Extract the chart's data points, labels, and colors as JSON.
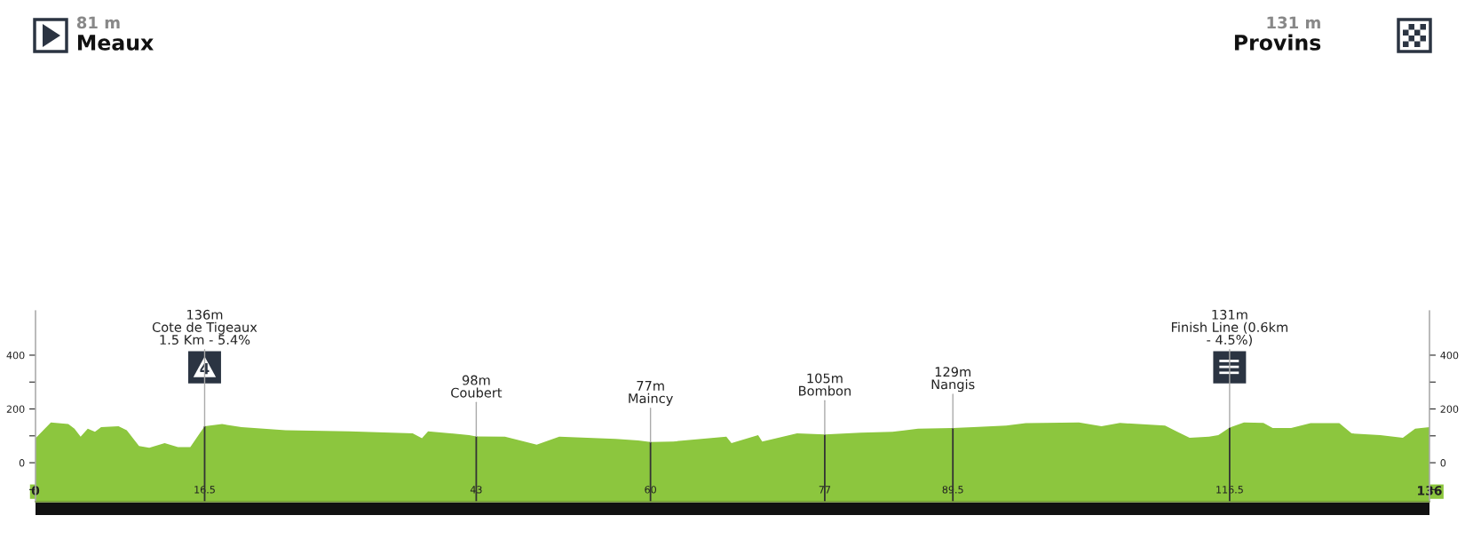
{
  "chart_data": {
    "type": "area",
    "x": [
      0,
      1.5,
      3.2,
      3.8,
      4.4,
      5.1,
      5.8,
      6.4,
      8.1,
      8.9,
      10.1,
      11.1,
      12.6,
      13.9,
      15.1,
      15.9,
      16.5,
      18.2,
      20.1,
      24.4,
      30.6,
      36.8,
      37.7,
      38.3,
      42.3,
      43,
      45.8,
      48.9,
      51.1,
      56.6,
      58.8,
      60,
      62.2,
      67.4,
      67.9,
      70.5,
      70.9,
      74.3,
      77,
      80.5,
      83.6,
      86.1,
      89.5,
      91.5,
      94.7,
      96.6,
      101.8,
      104,
      105.8,
      110.2,
      111.4,
      112.6,
      114.5,
      115.4,
      116.5,
      117.9,
      119.8,
      120.7,
      122.5,
      124.4,
      127.2,
      128.4,
      131.2,
      133.4,
      134.6,
      136
    ],
    "series": [
      {
        "color": "#8cc63e",
        "values": [
          91,
          150,
          144,
          127,
          97,
          127,
          115,
          132,
          136,
          121,
          62,
          56,
          73,
          58,
          58,
          103,
          136,
          144,
          132,
          121,
          117,
          109,
          91,
          117,
          103,
          98,
          97,
          67,
          97,
          89,
          83,
          77,
          79,
          97,
          73,
          103,
          79,
          109,
          105,
          112,
          115,
          127,
          129,
          132,
          138,
          147,
          150,
          136,
          148,
          138,
          115,
          93,
          97,
          103,
          131,
          150,
          148,
          129,
          129,
          147,
          147,
          109,
          103,
          93,
          127,
          132
        ]
      }
    ],
    "xlim": [
      0,
      136
    ],
    "xticks": [
      0,
      16.5,
      43,
      60,
      77,
      89.5,
      116.5,
      136
    ],
    "ylim": [
      -145,
      565
    ],
    "yticks": [
      {
        "value": -100,
        "label": null
      },
      0,
      {
        "value": 100,
        "label": null
      },
      200,
      {
        "value": 300,
        "label": null
      },
      400
    ],
    "y2lim": [
      -145,
      565
    ],
    "y2ticks": [
      {
        "value": -100,
        "label": null
      },
      0,
      {
        "value": 100,
        "label": null
      },
      200,
      {
        "value": 300,
        "label": null
      },
      400
    ],
    "grid": false,
    "annotations": [
      "81 m",
      "Meaux",
      "131 m",
      "Provins",
      {
        "text": "136m\nCote de Tigeaux\n1.5 Km - 5.4%",
        "x": 16.5,
        "y": 136
      },
      {
        "text": "98m\nCoubert",
        "x": 43,
        "y": 98
      },
      {
        "text": "77m\nMaincy",
        "x": 60,
        "y": 77
      },
      {
        "text": "105m\nBombon",
        "x": 77,
        "y": 105
      },
      {
        "text": "129m\nNangis",
        "x": 89.5,
        "y": 129
      },
      {
        "text": "131m\nFinish Line (0.6km\n- 4.5%)",
        "x": 116.5,
        "y": 131
      },
      "4"
    ]
  }
}
